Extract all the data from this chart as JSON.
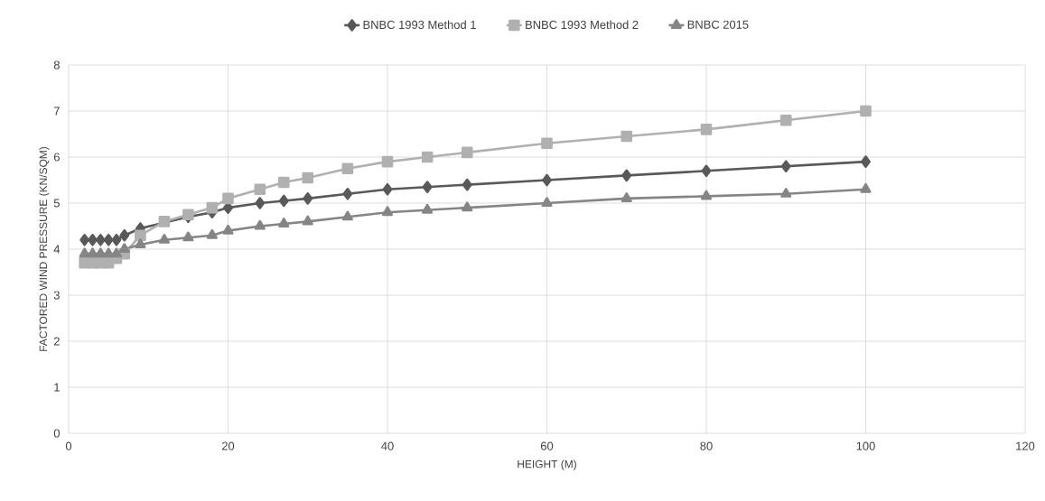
{
  "chart_data": {
    "type": "line",
    "xlabel": "HEIGHT (M)",
    "ylabel": "FACTORED WIND PRESSURE (KN/SQM)",
    "x": [
      2,
      3,
      4,
      5,
      6,
      7,
      9,
      12,
      15,
      18,
      20,
      24,
      27,
      30,
      35,
      40,
      45,
      50,
      60,
      70,
      80,
      90,
      100
    ],
    "series": [
      {
        "name": "BNBC 1993 Method 1",
        "color": "#595959",
        "marker": "diamond",
        "values": [
          4.2,
          4.2,
          4.2,
          4.2,
          4.2,
          4.3,
          4.45,
          null,
          4.7,
          4.8,
          4.9,
          5.0,
          5.05,
          5.1,
          5.2,
          5.3,
          5.35,
          5.4,
          5.5,
          5.6,
          5.7,
          5.8,
          5.9
        ]
      },
      {
        "name": "BNBC 1993 Method 2",
        "color": "#b0b0b0",
        "marker": "square",
        "values": [
          3.7,
          3.7,
          3.7,
          3.7,
          3.8,
          3.9,
          4.3,
          4.6,
          4.75,
          4.9,
          5.1,
          5.3,
          5.45,
          5.55,
          5.75,
          5.9,
          6.0,
          6.1,
          6.3,
          6.45,
          6.6,
          6.8,
          7.0
        ]
      },
      {
        "name": "BNBC 2015",
        "color": "#858585",
        "marker": "triangle",
        "values": [
          3.9,
          3.9,
          3.9,
          3.9,
          3.9,
          4.0,
          4.1,
          4.2,
          4.25,
          4.3,
          4.4,
          4.5,
          4.55,
          4.6,
          4.7,
          4.8,
          4.85,
          4.9,
          5.0,
          5.1,
          5.15,
          5.2,
          5.3
        ]
      }
    ],
    "xlim": [
      0,
      120
    ],
    "xticks": [
      0,
      20,
      40,
      60,
      80,
      100,
      120
    ],
    "ylim": [
      0,
      8
    ],
    "yticks": [
      0,
      1,
      2,
      3,
      4,
      5,
      6,
      7,
      8
    ],
    "grid": true,
    "legend": "top"
  }
}
